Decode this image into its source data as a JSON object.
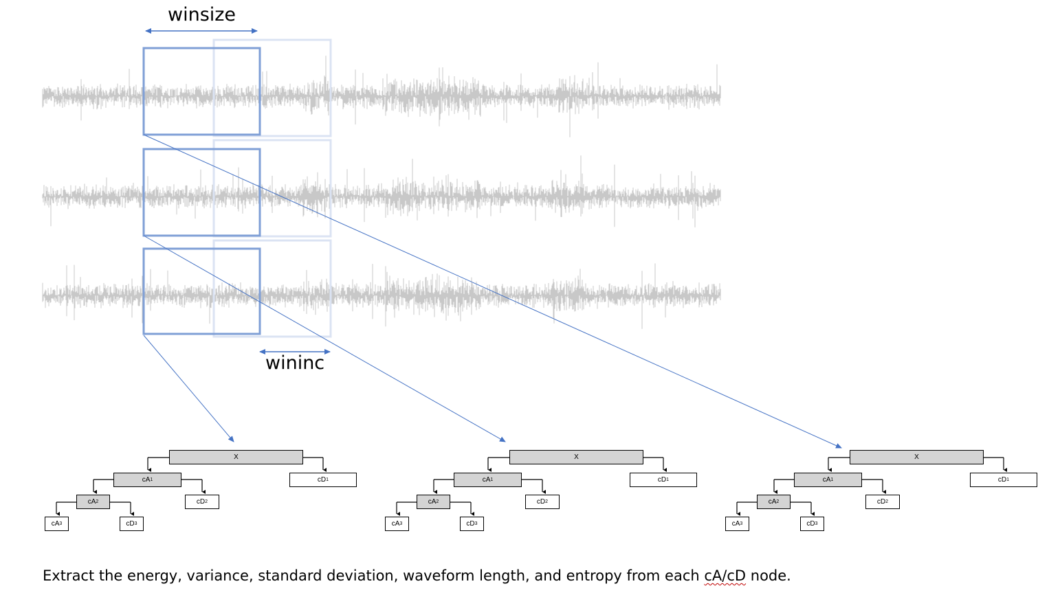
{
  "labels": {
    "winsize": "winsize",
    "wininc": "wininc"
  },
  "trees": [
    {
      "root": "X",
      "cA1": "cA",
      "cA1_sub": "1",
      "cD1": "cD",
      "cD1_sub": "1",
      "cA2": "cA",
      "cA2_sub": "2",
      "cD2": "cD",
      "cD2_sub": "2",
      "cA3": "cA",
      "cA3_sub": "3",
      "cD3": "cD",
      "cD3_sub": "3"
    },
    {
      "root": "X",
      "cA1": "cA",
      "cA1_sub": "1",
      "cD1": "cD",
      "cD1_sub": "1",
      "cA2": "cA",
      "cA2_sub": "2",
      "cD2": "cD",
      "cD2_sub": "2",
      "cA3": "cA",
      "cA3_sub": "3",
      "cD3": "cD",
      "cD3_sub": "3"
    },
    {
      "root": "X",
      "cA1": "cA",
      "cA1_sub": "1",
      "cD1": "cD",
      "cD1_sub": "1",
      "cA2": "cA",
      "cA2_sub": "2",
      "cD2": "cD",
      "cD2_sub": "2",
      "cA3": "cA",
      "cA3_sub": "3",
      "cD3": "cD",
      "cD3_sub": "3"
    }
  ],
  "caption": {
    "before": "Extract the energy, variance, standard deviation, waveform length, and entropy from each ",
    "highlight": "cA/cD",
    "after": " node."
  },
  "colors": {
    "signal": "#c8c8c8",
    "window_active": "#7f9fd6",
    "window_shifted": "#dbe3f3",
    "arrow": "#4472c4",
    "node_shaded": "#d4d4d4"
  }
}
